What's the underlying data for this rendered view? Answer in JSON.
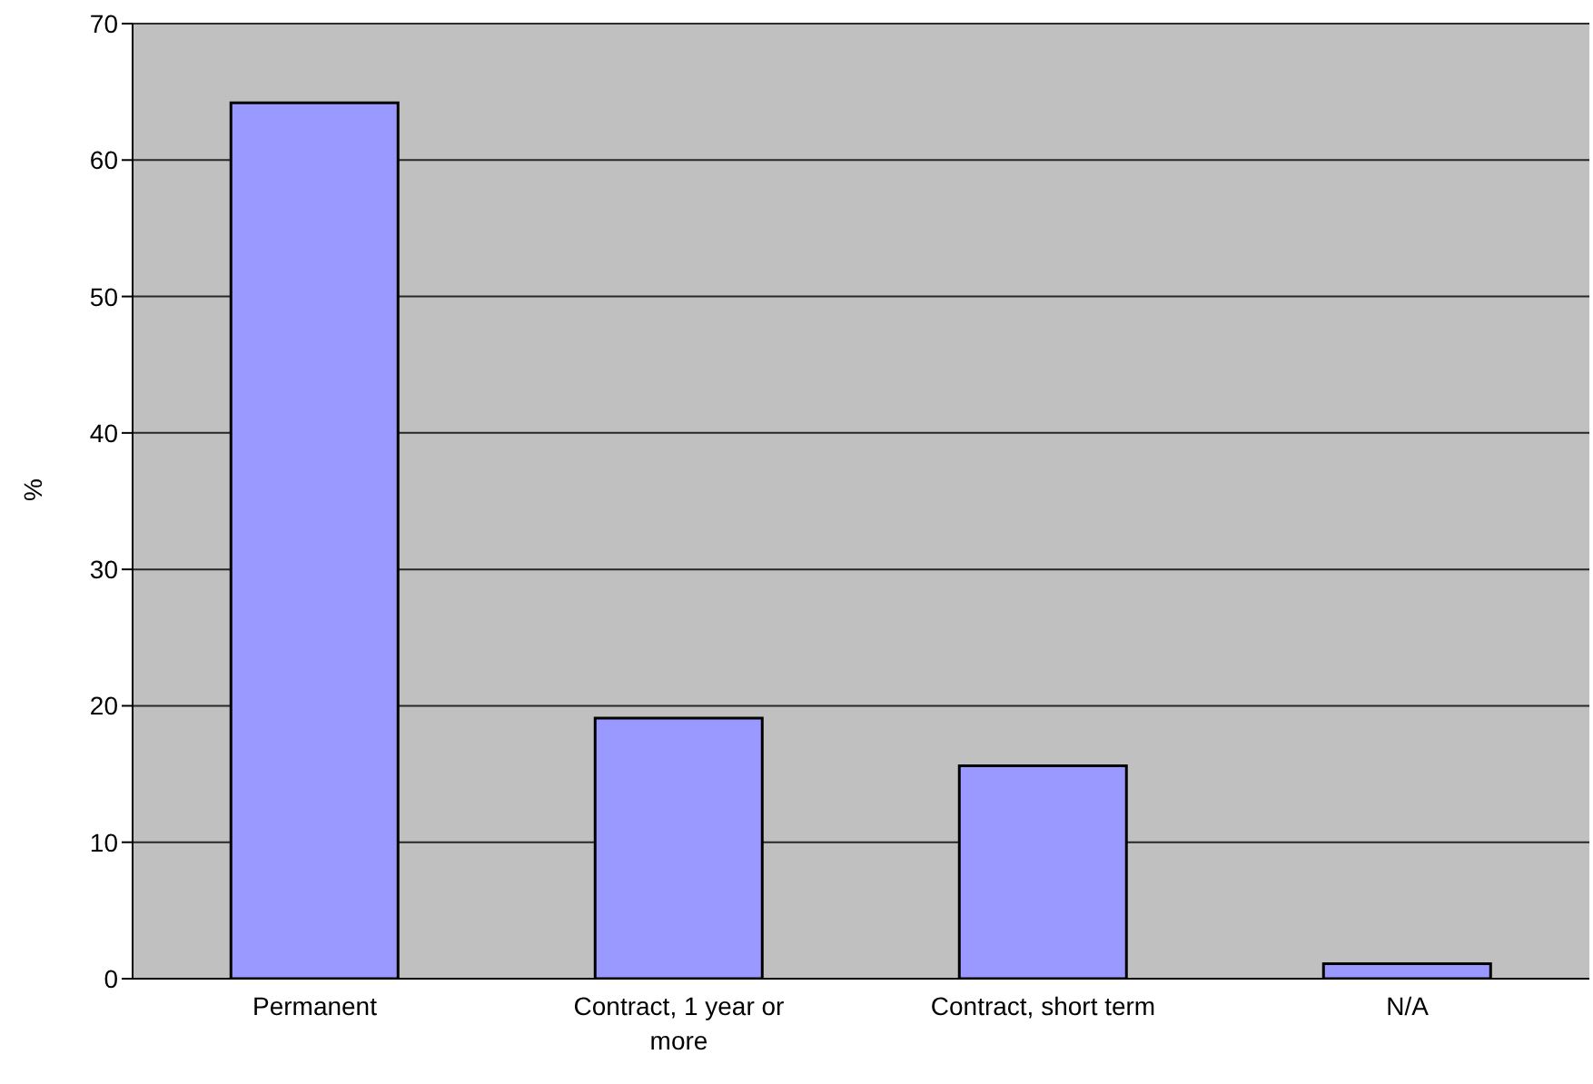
{
  "chart_data": {
    "type": "bar",
    "ylabel": "%",
    "categories": [
      "Permanent",
      "Contract, 1 year or more",
      "Contract, short term",
      "N/A"
    ],
    "values": [
      64.2,
      19.1,
      15.6,
      1.1
    ],
    "color": "#9999ff",
    "ylim": [
      0,
      70
    ],
    "yticks": [
      0,
      10,
      20,
      30,
      40,
      50,
      60,
      70
    ],
    "grid": "y"
  }
}
